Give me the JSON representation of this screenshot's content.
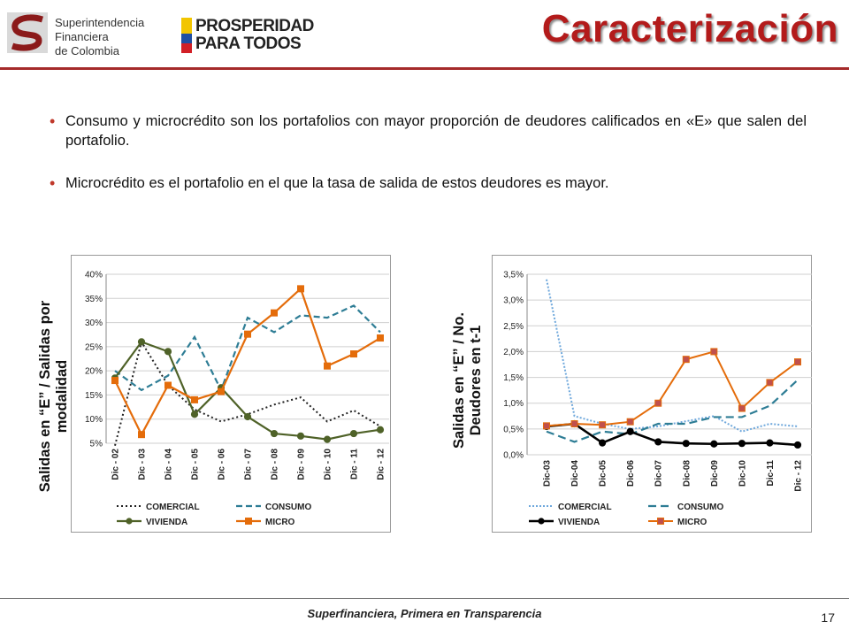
{
  "header": {
    "title": "Caracterización",
    "logo_sfc": {
      "lines": [
        "Superintendencia",
        "Financiera",
        "de Colombia"
      ]
    },
    "logo_pros": {
      "lines": [
        "PROSPERIDAD",
        "PARA TODOS"
      ]
    }
  },
  "bullets": [
    "Consumo y microcrédito son los portafolios con mayor proporción de deudores calificados en «E» que salen del portafolio.",
    "Microcrédito es el portafolio en el que la tasa de salida de estos deudores es mayor."
  ],
  "left_ylabel": [
    "Salidas en  “E” / Salidas por",
    "modalidad"
  ],
  "right_ylabel": [
    "Salidas en  “E” / No.",
    "Deudores en t-1"
  ],
  "footer": "Superfinanciera, Primera en Transparencia",
  "page_number": "17",
  "colors": {
    "comercial": "#222222",
    "consumo": "#2e7d95",
    "vivienda": "#4f6228",
    "micro": "#e46c0a",
    "comercial_right": "#6fa8dc"
  },
  "chart_data": [
    {
      "type": "line",
      "categories": [
        "Dic - 02",
        "Dic - 03",
        "Dic - 04",
        "Dic - 05",
        "Dic - 06",
        "Dic - 07",
        "Dic - 08",
        "Dic - 09",
        "Dic - 10",
        "Dic - 11",
        "Dic - 12"
      ],
      "ylim": [
        0.05,
        0.4
      ],
      "yticks": [
        "5%",
        "10%",
        "15%",
        "20%",
        "25%",
        "30%",
        "35%",
        "40%"
      ],
      "series": [
        {
          "name": "COMERCIAL",
          "values": [
            0.045,
            0.26,
            0.17,
            0.12,
            0.095,
            0.11,
            0.13,
            0.145,
            0.095,
            0.118,
            0.085
          ]
        },
        {
          "name": "CONSUMO",
          "values": [
            0.2,
            0.16,
            0.19,
            0.27,
            0.16,
            0.31,
            0.28,
            0.315,
            0.31,
            0.335,
            0.28
          ]
        },
        {
          "name": "VIVIENDA",
          "values": [
            0.185,
            0.26,
            0.24,
            0.11,
            0.165,
            0.105,
            0.07,
            0.065,
            0.058,
            0.07,
            0.078
          ]
        },
        {
          "name": "MICRO",
          "values": [
            0.18,
            0.068,
            0.17,
            0.14,
            0.157,
            0.276,
            0.32,
            0.37,
            0.21,
            0.235,
            0.268
          ]
        }
      ],
      "grid": true,
      "legend": "bottom"
    },
    {
      "type": "line",
      "categories": [
        "Dic-03",
        "Dic-04",
        "Dic-05",
        "Dic-06",
        "Dic-07",
        "Dic-08",
        "Dic-09",
        "Dic-10",
        "Dic-11",
        "Dic - 12"
      ],
      "ylim": [
        0.0,
        0.035
      ],
      "yticks": [
        "0,0%",
        "0,5%",
        "1,0%",
        "1,5%",
        "2,0%",
        "2,5%",
        "3,0%",
        "3,5%"
      ],
      "series": [
        {
          "name": "COMERCIAL",
          "values": [
            0.034,
            0.0075,
            0.006,
            0.005,
            0.0055,
            0.0065,
            0.0075,
            0.0045,
            0.006,
            0.0055
          ]
        },
        {
          "name": "CONSUMO",
          "values": [
            0.0045,
            0.0025,
            0.0045,
            0.004,
            0.006,
            0.006,
            0.0073,
            0.0073,
            0.0095,
            0.0145
          ]
        },
        {
          "name": "VIVIENDA",
          "values": [
            0.0055,
            0.006,
            0.0023,
            0.0045,
            0.0025,
            0.0022,
            0.0021,
            0.0022,
            0.0023,
            0.0019
          ]
        },
        {
          "name": "MICRO",
          "values": [
            0.0056,
            0.006,
            0.0058,
            0.0064,
            0.01,
            0.0185,
            0.02,
            0.009,
            0.014,
            0.018
          ]
        }
      ],
      "grid": true,
      "legend": "bottom"
    }
  ]
}
